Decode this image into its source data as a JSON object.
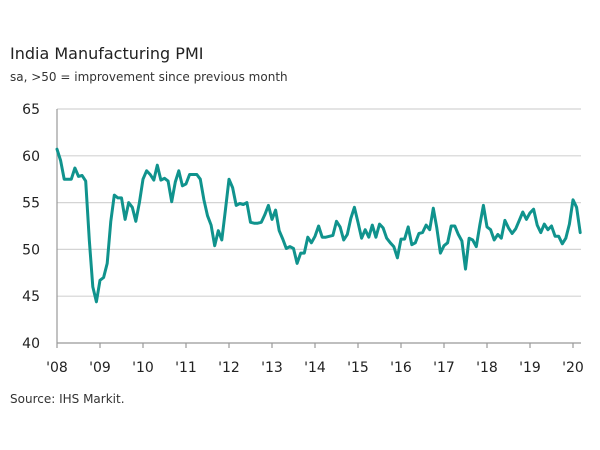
{
  "chart_data": {
    "type": "line",
    "title": "India Manufacturing PMI",
    "subtitle": "sa, >50 = improvement since previous month",
    "source": "Source: IHS Markit.",
    "xlabel": "",
    "ylabel": "",
    "ylim": [
      40,
      65
    ],
    "yticks": [
      40,
      45,
      50,
      55,
      60,
      65
    ],
    "xtick_labels": [
      "'08",
      "'09",
      "'10",
      "'11",
      "'12",
      "'13",
      "'14",
      "'15",
      "'16",
      "'17",
      "'18",
      "'19",
      "'20"
    ],
    "grid": true,
    "line_color": "#10938d",
    "start": "2008-01",
    "frequency": "monthly",
    "series": [
      {
        "values": [
          60.7,
          59.5,
          57.5,
          57.5,
          57.5,
          58.7,
          57.8,
          57.9,
          57.3,
          51,
          46,
          44.4,
          46.7,
          47,
          48.5,
          53,
          55.8,
          55.5,
          55.5,
          53.2,
          55,
          54.5,
          53,
          55,
          57.5,
          58.4,
          58,
          57.4,
          59,
          57.4,
          57.6,
          57.3,
          55.1,
          57.2,
          58.4,
          56.8,
          57,
          58,
          58,
          58,
          57.5,
          55.3,
          53.6,
          52.6,
          50.4,
          52,
          51,
          54.2,
          57.5,
          56.6,
          54.7,
          54.9,
          54.8,
          55,
          52.9,
          52.8,
          52.8,
          52.9,
          53.7,
          54.7,
          53.2,
          54.2,
          52,
          51.1,
          50.1,
          50.3,
          50.1,
          48.5,
          49.6,
          49.6,
          51.3,
          50.7,
          51.4,
          52.5,
          51.3,
          51.3,
          51.4,
          51.5,
          53,
          52.4,
          51,
          51.6,
          53.3,
          54.5,
          52.9,
          51.2,
          52.1,
          51.3,
          52.6,
          51.3,
          52.7,
          52.3,
          51.2,
          50.7,
          50.3,
          49.1,
          51.1,
          51.1,
          52.4,
          50.5,
          50.7,
          51.7,
          51.8,
          52.6,
          52.1,
          54.4,
          52.3,
          49.6,
          50.4,
          50.7,
          52.5,
          52.5,
          51.6,
          50.9,
          47.9,
          51.2,
          51,
          50.3,
          52.6,
          54.7,
          52.4,
          52.1,
          51,
          51.6,
          51.2,
          53.1,
          52.3,
          51.7,
          52.2,
          53.1,
          54,
          53.2,
          53.9,
          54.3,
          52.6,
          51.8,
          52.7,
          52.1,
          52.5,
          51.4,
          51.4,
          50.6,
          51.2,
          52.7,
          55.3,
          54.5,
          51.8
        ]
      }
    ]
  }
}
